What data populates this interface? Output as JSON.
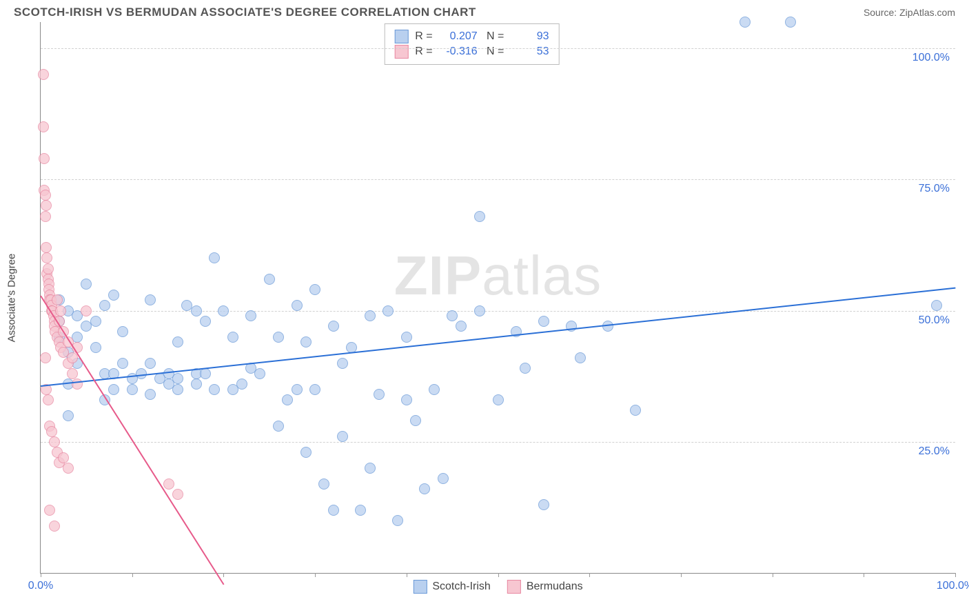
{
  "header": {
    "title": "SCOTCH-IRISH VS BERMUDAN ASSOCIATE'S DEGREE CORRELATION CHART",
    "source_label": "Source:",
    "source_name": "ZipAtlas.com"
  },
  "chart": {
    "type": "scatter",
    "ylabel": "Associate's Degree",
    "xlim": [
      0,
      100
    ],
    "ylim": [
      0,
      105
    ],
    "xtick_positions": [
      0,
      10,
      20,
      30,
      40,
      50,
      60,
      70,
      80,
      90,
      100
    ],
    "xtick_labels": {
      "0": "0.0%",
      "100": "100.0%"
    },
    "ytick_positions": [
      25,
      50,
      75,
      100
    ],
    "ytick_labels": {
      "25": "25.0%",
      "50": "50.0%",
      "75": "75.0%",
      "100": "100.0%"
    },
    "background_color": "#ffffff",
    "grid_color": "#d0d0d0",
    "axis_color": "#888888",
    "tick_label_color": "#3a6fd8",
    "marker_radius": 8,
    "marker_border_width": 1.2,
    "watermark_text_bold": "ZIP",
    "watermark_text_rest": "atlas",
    "series": [
      {
        "name": "Scotch-Irish",
        "fill": "#b9d0ef",
        "stroke": "#6b9ad8",
        "fill_opacity": 0.75,
        "regression": {
          "color": "#2a6fd6",
          "x1": 0,
          "y1": 35.8,
          "x2": 100,
          "y2": 54.5
        },
        "R": "0.207",
        "N": "93",
        "points": [
          [
            2,
            52
          ],
          [
            2,
            48
          ],
          [
            2,
            45
          ],
          [
            3,
            50
          ],
          [
            3,
            36
          ],
          [
            3,
            30
          ],
          [
            4,
            49
          ],
          [
            4,
            45
          ],
          [
            4,
            40
          ],
          [
            5,
            55
          ],
          [
            5,
            47
          ],
          [
            6,
            48
          ],
          [
            6,
            43
          ],
          [
            7,
            51
          ],
          [
            7,
            38
          ],
          [
            8,
            53
          ],
          [
            8,
            38
          ],
          [
            8,
            35
          ],
          [
            9,
            46
          ],
          [
            9,
            40
          ],
          [
            10,
            37
          ],
          [
            10,
            35
          ],
          [
            11,
            38
          ],
          [
            12,
            52
          ],
          [
            12,
            40
          ],
          [
            12,
            34
          ],
          [
            13,
            37
          ],
          [
            14,
            38
          ],
          [
            14,
            36
          ],
          [
            15,
            44
          ],
          [
            15,
            37
          ],
          [
            15,
            35
          ],
          [
            16,
            51
          ],
          [
            17,
            50
          ],
          [
            17,
            38
          ],
          [
            17,
            36
          ],
          [
            18,
            48
          ],
          [
            18,
            38
          ],
          [
            19,
            60
          ],
          [
            19,
            35
          ],
          [
            20,
            50
          ],
          [
            21,
            45
          ],
          [
            21,
            35
          ],
          [
            22,
            36
          ],
          [
            23,
            49
          ],
          [
            23,
            39
          ],
          [
            24,
            38
          ],
          [
            25,
            56
          ],
          [
            26,
            45
          ],
          [
            26,
            28
          ],
          [
            27,
            33
          ],
          [
            28,
            51
          ],
          [
            28,
            35
          ],
          [
            29,
            44
          ],
          [
            29,
            23
          ],
          [
            30,
            54
          ],
          [
            30,
            35
          ],
          [
            31,
            17
          ],
          [
            32,
            47
          ],
          [
            32,
            12
          ],
          [
            33,
            40
          ],
          [
            33,
            26
          ],
          [
            34,
            43
          ],
          [
            35,
            12
          ],
          [
            36,
            49
          ],
          [
            36,
            20
          ],
          [
            37,
            34
          ],
          [
            38,
            50
          ],
          [
            39,
            10
          ],
          [
            40,
            45
          ],
          [
            40,
            33
          ],
          [
            41,
            29
          ],
          [
            42,
            16
          ],
          [
            43,
            35
          ],
          [
            44,
            18
          ],
          [
            45,
            49
          ],
          [
            46,
            47
          ],
          [
            48,
            50
          ],
          [
            48,
            68
          ],
          [
            50,
            33
          ],
          [
            52,
            46
          ],
          [
            53,
            39
          ],
          [
            55,
            48
          ],
          [
            55,
            13
          ],
          [
            58,
            47
          ],
          [
            59,
            41
          ],
          [
            62,
            47
          ],
          [
            65,
            31
          ],
          [
            77,
            105
          ],
          [
            82,
            105
          ],
          [
            98,
            51
          ],
          [
            7,
            33
          ],
          [
            3,
            42
          ]
        ]
      },
      {
        "name": "Bermudans",
        "fill": "#f7c6d1",
        "stroke": "#e889a2",
        "fill_opacity": 0.75,
        "regression": {
          "color": "#e75a8a",
          "x1": 0,
          "y1": 53,
          "x2": 20,
          "y2": -2
        },
        "R": "-0.316",
        "N": "53",
        "points": [
          [
            0.3,
            95
          ],
          [
            0.3,
            85
          ],
          [
            0.4,
            79
          ],
          [
            0.4,
            73
          ],
          [
            0.5,
            72
          ],
          [
            0.5,
            68
          ],
          [
            0.6,
            70
          ],
          [
            0.6,
            62
          ],
          [
            0.7,
            60
          ],
          [
            0.7,
            57
          ],
          [
            0.8,
            58
          ],
          [
            0.8,
            56
          ],
          [
            0.9,
            55
          ],
          [
            0.9,
            54
          ],
          [
            1.0,
            53
          ],
          [
            1.0,
            52
          ],
          [
            1.1,
            52
          ],
          [
            1.2,
            51
          ],
          [
            1.2,
            50
          ],
          [
            1.3,
            50
          ],
          [
            1.4,
            49
          ],
          [
            1.5,
            48
          ],
          [
            1.5,
            47
          ],
          [
            1.6,
            46
          ],
          [
            1.8,
            45
          ],
          [
            1.8,
            52
          ],
          [
            2.0,
            44
          ],
          [
            2.0,
            48
          ],
          [
            2.2,
            43
          ],
          [
            2.2,
            50
          ],
          [
            2.5,
            46
          ],
          [
            2.5,
            42
          ],
          [
            3.0,
            44
          ],
          [
            3.0,
            40
          ],
          [
            3.5,
            41
          ],
          [
            3.5,
            38
          ],
          [
            4.0,
            43
          ],
          [
            4.0,
            36
          ],
          [
            5.0,
            50
          ],
          [
            1.0,
            28
          ],
          [
            1.2,
            27
          ],
          [
            1.5,
            25
          ],
          [
            1.8,
            23
          ],
          [
            2.0,
            21
          ],
          [
            2.5,
            22
          ],
          [
            3.0,
            20
          ],
          [
            1.0,
            12
          ],
          [
            1.5,
            9
          ],
          [
            0.8,
            33
          ],
          [
            0.6,
            35
          ],
          [
            14,
            17
          ],
          [
            15,
            15
          ],
          [
            0.5,
            41
          ]
        ]
      }
    ],
    "legend_top": {
      "rows": [
        {
          "swatch_fill": "#b9d0ef",
          "swatch_stroke": "#6b9ad8",
          "r_label": "R =",
          "r_value": "0.207",
          "n_label": "N =",
          "n_value": "93"
        },
        {
          "swatch_fill": "#f7c6d1",
          "swatch_stroke": "#e889a2",
          "r_label": "R =",
          "r_value": "-0.316",
          "n_label": "N =",
          "n_value": "53"
        }
      ]
    },
    "legend_bottom": {
      "items": [
        {
          "swatch_fill": "#b9d0ef",
          "swatch_stroke": "#6b9ad8",
          "label": "Scotch-Irish"
        },
        {
          "swatch_fill": "#f7c6d1",
          "swatch_stroke": "#e889a2",
          "label": "Bermudans"
        }
      ]
    }
  }
}
